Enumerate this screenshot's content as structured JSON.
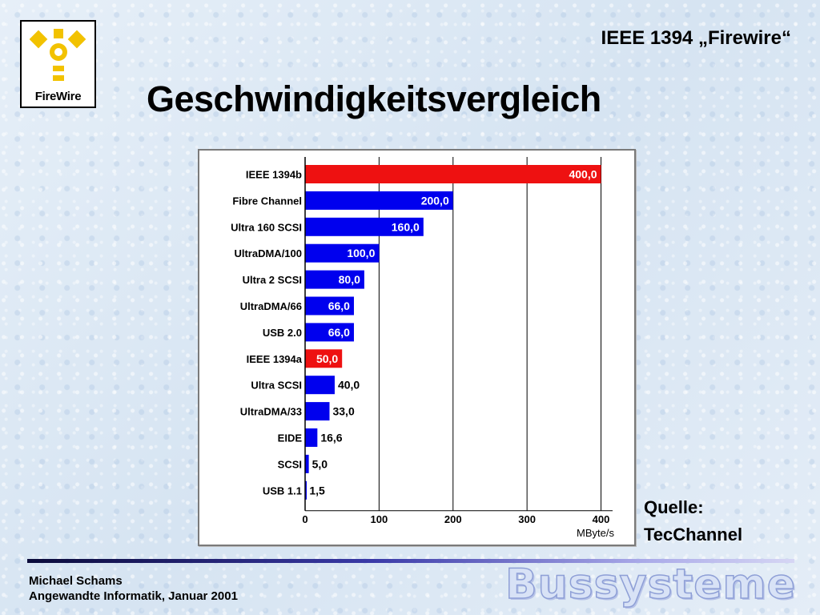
{
  "logo": {
    "text": "FireWire",
    "icon": "firewire-logo-icon",
    "colors": {
      "accent": "#f2c200"
    }
  },
  "header": {
    "topic": "IEEE 1394 „Firewire“",
    "title": "Geschwindigkeitsvergleich"
  },
  "source": {
    "label": "Quelle:",
    "name": "TecChannel"
  },
  "footer": {
    "author": "Michael Schams",
    "course": "Angewandte Informatik, Januar 2001",
    "watermark": "Bussysteme"
  },
  "chart_data": {
    "type": "bar",
    "orientation": "horizontal",
    "categories": [
      "IEEE 1394b",
      "Fibre Channel",
      "Ultra 160 SCSI",
      "UltraDMA/100",
      "Ultra 2 SCSI",
      "UltraDMA/66",
      "USB 2.0",
      "IEEE 1394a",
      "Ultra SCSI",
      "UltraDMA/33",
      "EIDE",
      "SCSI",
      "USB 1.1"
    ],
    "values": [
      400.0,
      200.0,
      160.0,
      100.0,
      80.0,
      66.0,
      66.0,
      50.0,
      40.0,
      33.0,
      16.6,
      5.0,
      1.5
    ],
    "value_labels": [
      "400,0",
      "200,0",
      "160,0",
      "100,0",
      "80,0",
      "66,0",
      "66,0",
      "50,0",
      "40,0",
      "33,0",
      "16,6",
      "5,0",
      "1,5"
    ],
    "highlight": [
      true,
      false,
      false,
      false,
      false,
      false,
      false,
      true,
      false,
      false,
      false,
      false,
      false
    ],
    "colors": {
      "default": "#0000ee",
      "highlight": "#ee1111"
    },
    "xlim": [
      0,
      420
    ],
    "xticks": [
      0,
      100,
      200,
      300,
      400
    ],
    "xlabel": "MByte/s",
    "grid": true
  }
}
